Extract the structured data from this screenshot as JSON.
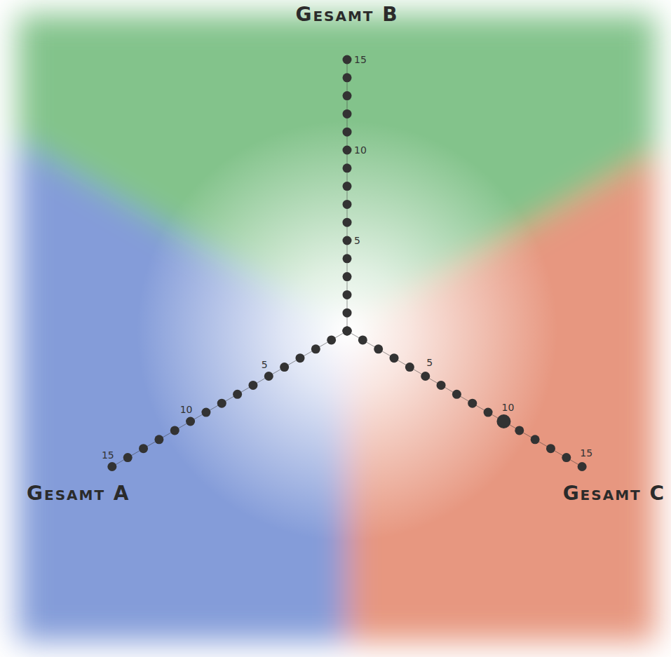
{
  "chart_data": {
    "type": "radar",
    "axes": [
      "Gesamt A",
      "Gesamt B",
      "Gesamt C"
    ],
    "colors": [
      "#6f8bd2",
      "#6cb877",
      "#e3856a"
    ],
    "rlim": [
      0,
      15
    ],
    "rticks": [
      5,
      10,
      15
    ],
    "minor_ticks": [
      0,
      1,
      2,
      3,
      4,
      5,
      6,
      7,
      8,
      9,
      10,
      11,
      12,
      13,
      14,
      15
    ],
    "series": [
      {
        "values": [
          null,
          null,
          10
        ],
        "marker": "circle",
        "color": "#333333"
      }
    ]
  }
}
